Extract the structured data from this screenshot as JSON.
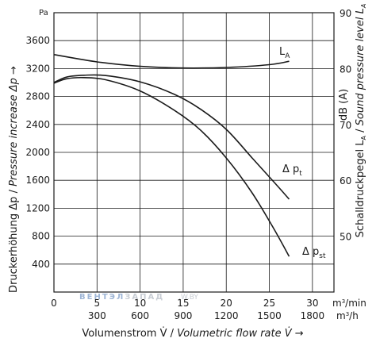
{
  "chart_data": {
    "type": "line",
    "title": "",
    "x_primary": {
      "label_de": "Volumenstrom V̇",
      "label_sep": " / ",
      "label_en": "Volumetric flow rate V̇",
      "arrow": "→",
      "unit": "m3/min",
      "ticks": [
        "0",
        "5",
        "10",
        "15",
        "20",
        "25",
        "30"
      ],
      "range": [
        0,
        32.5
      ]
    },
    "x_secondary": {
      "unit": "m3/h",
      "ticks": [
        "300",
        "600",
        "900",
        "1200",
        "1500",
        "1800"
      ]
    },
    "y_left": {
      "label_de": "Druckerhöhung Δp",
      "label_sep": " / ",
      "label_en": "Pressure increase Δp",
      "arrow": "→",
      "unit": "Pa",
      "ticks": [
        "400",
        "800",
        "1200",
        "1600",
        "2000",
        "2400",
        "2800",
        "3200",
        "3600"
      ],
      "range": [
        0,
        4000
      ]
    },
    "y_right": {
      "label_de": "Schalldruckpegel L",
      "label_sep": " / ",
      "label_en": "Sound pressure level L",
      "sub": "A",
      "unit_label": "dB (A)",
      "ticks": [
        "50",
        "60",
        "70",
        "80",
        "90"
      ],
      "range": [
        40,
        90
      ]
    },
    "grid": true,
    "series": [
      {
        "name": "L",
        "name_sub": "A",
        "axis": "right",
        "x": [
          0,
          5,
          10,
          15,
          20,
          25,
          27.3
        ],
        "y": [
          82.5,
          81.2,
          80.4,
          80.1,
          80.2,
          80.7,
          81.3
        ]
      },
      {
        "name": "Δ p",
        "name_sub": "t",
        "axis": "left",
        "x": [
          0,
          1.5,
          3.5,
          6,
          10,
          14,
          17,
          20,
          23,
          25.5,
          27.3
        ],
        "y": [
          3000,
          3080,
          3105,
          3100,
          3010,
          2830,
          2620,
          2330,
          1920,
          1580,
          1330
        ]
      },
      {
        "name": "Δ p",
        "name_sub": "st",
        "axis": "left",
        "x": [
          0,
          1.5,
          3.5,
          6,
          10,
          14,
          17,
          20,
          23,
          25.5,
          27.3
        ],
        "y": [
          2990,
          3055,
          3070,
          3040,
          2880,
          2600,
          2320,
          1920,
          1420,
          910,
          510
        ]
      }
    ]
  },
  "watermark": {
    "text_1": "ВЕНТЭЛ",
    "text_2": "ЗАПАД",
    "text_3": ".W.BY"
  }
}
